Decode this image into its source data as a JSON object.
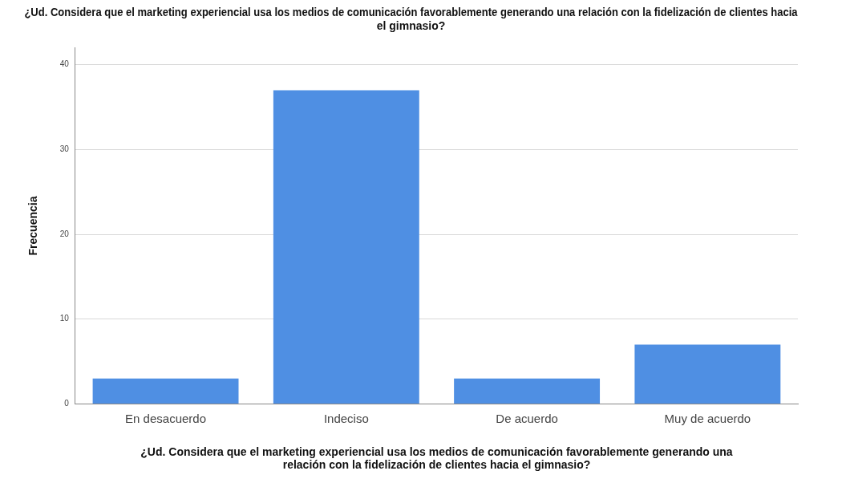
{
  "chart_data": {
    "type": "bar",
    "title": "¿Ud. Considera que el marketing experiencial usa los medios de comunicación favorablemente generando una relación con la fidelización de clientes hacia el gimnasio?",
    "xlabel": "¿Ud. Considera que el marketing experiencial usa los medios de comunicación favorablemente generando una relación con la fidelización de clientes hacia el gimnasio?",
    "ylabel": "Frecuencia",
    "categories": [
      "En desacuerdo",
      "Indeciso",
      "De acuerdo",
      "Muy de acuerdo"
    ],
    "values": [
      3,
      37,
      3,
      7
    ],
    "color": "#4f8fe3",
    "ylim": [
      0,
      42
    ],
    "yticks": [
      0,
      10,
      20,
      30,
      40
    ],
    "grid": "y",
    "legend": false
  }
}
